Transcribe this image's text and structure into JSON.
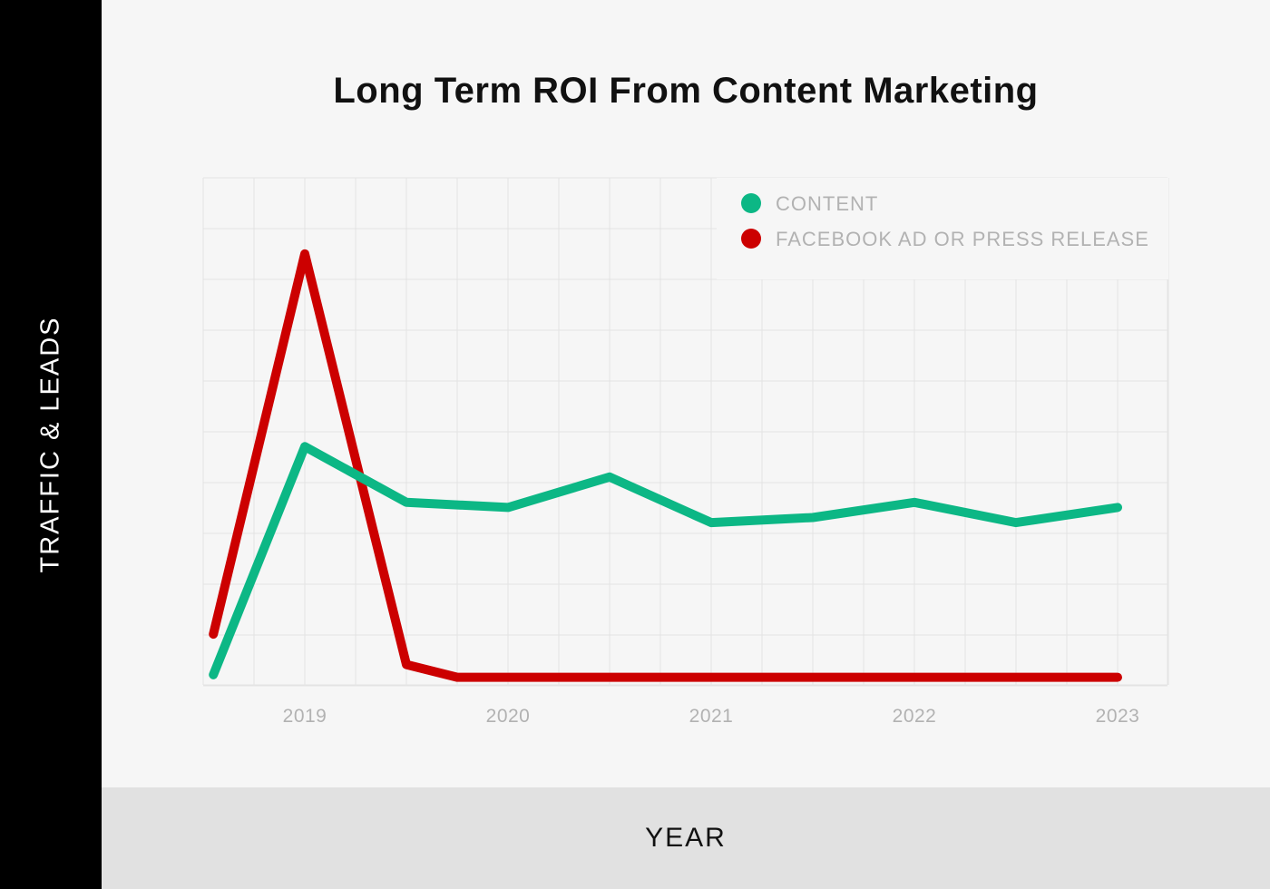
{
  "chart_data": {
    "type": "line",
    "title": "Long Term ROI From Content Marketing",
    "xlabel": "YEAR",
    "ylabel": "TRAFFIC & LEADS",
    "x_ticks": [
      "2019",
      "2020",
      "2021",
      "2022",
      "2023"
    ],
    "x_range": [
      2018.57,
      2023.25
    ],
    "y_range": [
      0,
      10
    ],
    "grid": true,
    "legend_position": "top-right",
    "series": [
      {
        "name": "CONTENT",
        "color": "#0cb785",
        "x": [
          2018.55,
          2019.0,
          2019.5,
          2020.0,
          2020.5,
          2021.0,
          2021.5,
          2022.0,
          2022.5,
          2023.0
        ],
        "y": [
          0.2,
          4.7,
          3.6,
          3.5,
          4.1,
          3.2,
          3.3,
          3.6,
          3.2,
          3.5
        ]
      },
      {
        "name": "FACEBOOK AD OR PRESS RELEASE",
        "color": "#cc0000",
        "x": [
          2018.55,
          2019.0,
          2019.5,
          2019.75,
          2020.0,
          2020.5,
          2021.0,
          2021.5,
          2022.0,
          2022.5,
          2023.0
        ],
        "y": [
          1.0,
          8.5,
          0.4,
          0.15,
          0.15,
          0.15,
          0.15,
          0.15,
          0.15,
          0.15,
          0.15
        ]
      }
    ]
  }
}
